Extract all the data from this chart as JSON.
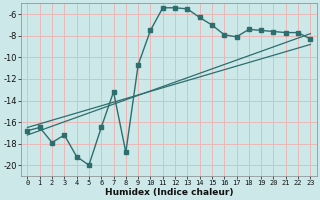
{
  "xlabel": "Humidex (Indice chaleur)",
  "bg_color": "#cce8e8",
  "grid_color": "#e8b8b8",
  "line_color": "#2d6e6e",
  "xlim": [
    -0.5,
    23.5
  ],
  "ylim": [
    -21.0,
    -5.0
  ],
  "xticks": [
    0,
    1,
    2,
    3,
    4,
    5,
    6,
    7,
    8,
    9,
    10,
    11,
    12,
    13,
    14,
    15,
    16,
    17,
    18,
    19,
    20,
    21,
    22,
    23
  ],
  "yticks": [
    -20,
    -18,
    -16,
    -14,
    -12,
    -10,
    -8,
    -6
  ],
  "curve_x": [
    0,
    1,
    2,
    3,
    4,
    5,
    6,
    7,
    8,
    9,
    10,
    11,
    12,
    13,
    14,
    15,
    16,
    17,
    18,
    19,
    20,
    21,
    22,
    23
  ],
  "curve_y": [
    -16.8,
    -16.5,
    -17.9,
    -17.2,
    -19.2,
    -20.0,
    -16.5,
    -13.2,
    -18.8,
    -10.7,
    -7.5,
    -5.4,
    -5.4,
    -5.5,
    -6.3,
    -7.0,
    -7.9,
    -8.1,
    -7.4,
    -7.5,
    -7.6,
    -7.7,
    -7.7,
    -8.3
  ],
  "line1_x": [
    0,
    23
  ],
  "line1_y": [
    -17.2,
    -7.8
  ],
  "line2_x": [
    0,
    23
  ],
  "line2_y": [
    -16.5,
    -8.8
  ]
}
